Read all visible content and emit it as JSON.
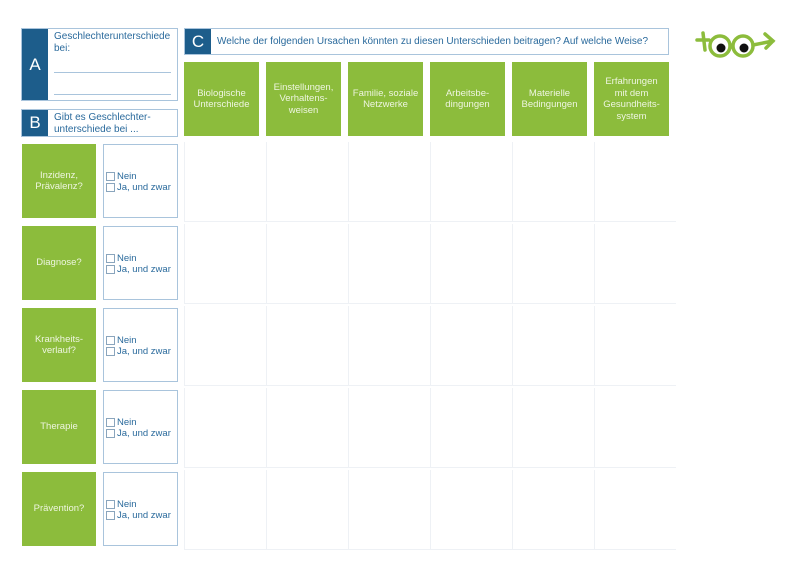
{
  "section_a": {
    "letter": "A",
    "title": "Geschlechterunterschiede bei:"
  },
  "section_b": {
    "letter": "B",
    "title": "Gibt es Geschlechter-unterschiede bei ..."
  },
  "section_c": {
    "letter": "C",
    "title": "Welche der folgenden Ursachen könnten zu diesen Unterschieden beitragen? Auf welche Weise?"
  },
  "columns": [
    "Biologische Unterschiede",
    "Einstellungen, Verhaltens-weisen",
    "Familie, soziale Netzwerke",
    "Arbeitsbe-dingungen",
    "Materielle Bedingungen",
    "Erfahrungen mit dem Gesundheits-system"
  ],
  "rows": [
    "Inzidenz, Prävalenz?",
    "Diagnose?",
    "Krankheits-verlauf?",
    "Therapie",
    "Prävention?"
  ],
  "options": {
    "no": "Nein",
    "yes": "Ja, und zwar"
  },
  "colors": {
    "green": "#8cbc3c",
    "blue": "#1d5d8b"
  },
  "logo": "eyes-logo-icon"
}
